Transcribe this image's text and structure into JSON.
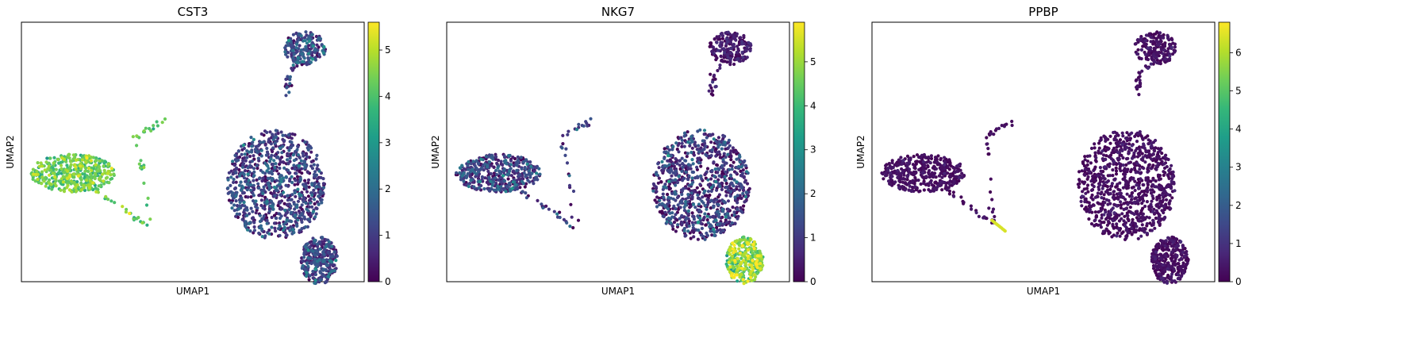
{
  "chart_data": [
    {
      "type": "scatter",
      "title": "CST3",
      "xlabel": "UMAP1",
      "ylabel": "UMAP2",
      "colormap": "viridis",
      "colorbar": {
        "min": 0,
        "max": 5.6,
        "ticks": [
          0,
          1,
          2,
          3,
          4,
          5
        ]
      },
      "grid": false,
      "clusters": [
        {
          "name": "top-right",
          "cx": 16.0,
          "cy": 13.6,
          "rx": 1.6,
          "ry": 1.4,
          "n": 180,
          "value_mean": 1.2,
          "value_sd": 0.7,
          "tail": [
            [
              14.8,
              11.2
            ],
            [
              14.6,
              9.8
            ]
          ]
        },
        {
          "name": "left",
          "cx": -1.6,
          "cy": 3.0,
          "rx": 3.2,
          "ry": 1.6,
          "n": 420,
          "value_mean": 4.2,
          "value_sd": 0.5,
          "tail": [
            [
              1.8,
              0.2
            ],
            [
              4.3,
              -1.6
            ],
            [
              3.2,
              6.2
            ],
            [
              5.4,
              7.5
            ]
          ]
        },
        {
          "name": "right",
          "cx": 13.8,
          "cy": 2.0,
          "rx": 3.7,
          "ry": 4.7,
          "n": 900,
          "value_mean": 0.9,
          "value_sd": 0.7,
          "lobe": [
            17.1,
            -4.4,
            1.4,
            2.0
          ]
        }
      ]
    },
    {
      "type": "scatter",
      "title": "NKG7",
      "xlabel": "UMAP1",
      "ylabel": "UMAP2",
      "colormap": "viridis",
      "colorbar": {
        "min": 0,
        "max": 5.9,
        "ticks": [
          0,
          1,
          2,
          3,
          4,
          5
        ]
      },
      "grid": false,
      "clusters": [
        {
          "name": "top-right",
          "cx": 16.0,
          "cy": 13.6,
          "rx": 1.6,
          "ry": 1.4,
          "n": 180,
          "value_mean": 0.3,
          "value_sd": 0.3,
          "tail": [
            [
              14.8,
              11.2
            ],
            [
              14.6,
              9.8
            ]
          ]
        },
        {
          "name": "left",
          "cx": -1.6,
          "cy": 3.0,
          "rx": 3.2,
          "ry": 1.6,
          "n": 420,
          "value_mean": 0.9,
          "value_sd": 0.8,
          "tail": [
            [
              1.8,
              0.2
            ],
            [
              4.3,
              -1.6
            ],
            [
              3.2,
              6.2
            ],
            [
              5.4,
              7.5
            ]
          ]
        },
        {
          "name": "right",
          "cx": 13.8,
          "cy": 2.0,
          "rx": 3.7,
          "ry": 4.7,
          "n": 900,
          "value_mean": 0.8,
          "value_sd": 0.8,
          "lobe": [
            17.1,
            -4.4,
            1.4,
            2.0
          ],
          "lobe_value_mean": 4.6
        }
      ]
    },
    {
      "type": "scatter",
      "title": "PPBP",
      "xlabel": "UMAP1",
      "ylabel": "UMAP2",
      "colormap": "viridis",
      "colorbar": {
        "min": 0,
        "max": 6.8,
        "ticks": [
          0,
          1,
          2,
          3,
          4,
          5,
          6
        ]
      },
      "grid": false,
      "clusters": [
        {
          "name": "top-right",
          "cx": 16.0,
          "cy": 13.6,
          "rx": 1.6,
          "ry": 1.4,
          "n": 180,
          "value_mean": 0.2,
          "value_sd": 0.2,
          "tail": [
            [
              14.8,
              11.2
            ],
            [
              14.6,
              9.8
            ]
          ]
        },
        {
          "name": "left",
          "cx": -1.6,
          "cy": 3.0,
          "rx": 3.2,
          "ry": 1.6,
          "n": 420,
          "value_mean": 0.2,
          "value_sd": 0.2,
          "tail": [
            [
              1.8,
              0.2
            ],
            [
              3.7,
              -1.2
            ],
            [
              3.2,
              6.2
            ],
            [
              5.4,
              7.5
            ]
          ],
          "bright_tail": [
            [
              3.6,
              -1.0
            ],
            [
              4.6,
              -1.9
            ]
          ]
        },
        {
          "name": "right",
          "cx": 13.8,
          "cy": 2.0,
          "rx": 3.7,
          "ry": 4.7,
          "n": 900,
          "value_mean": 0.2,
          "value_sd": 0.2,
          "lobe": [
            17.1,
            -4.4,
            1.4,
            2.0
          ]
        }
      ]
    }
  ]
}
